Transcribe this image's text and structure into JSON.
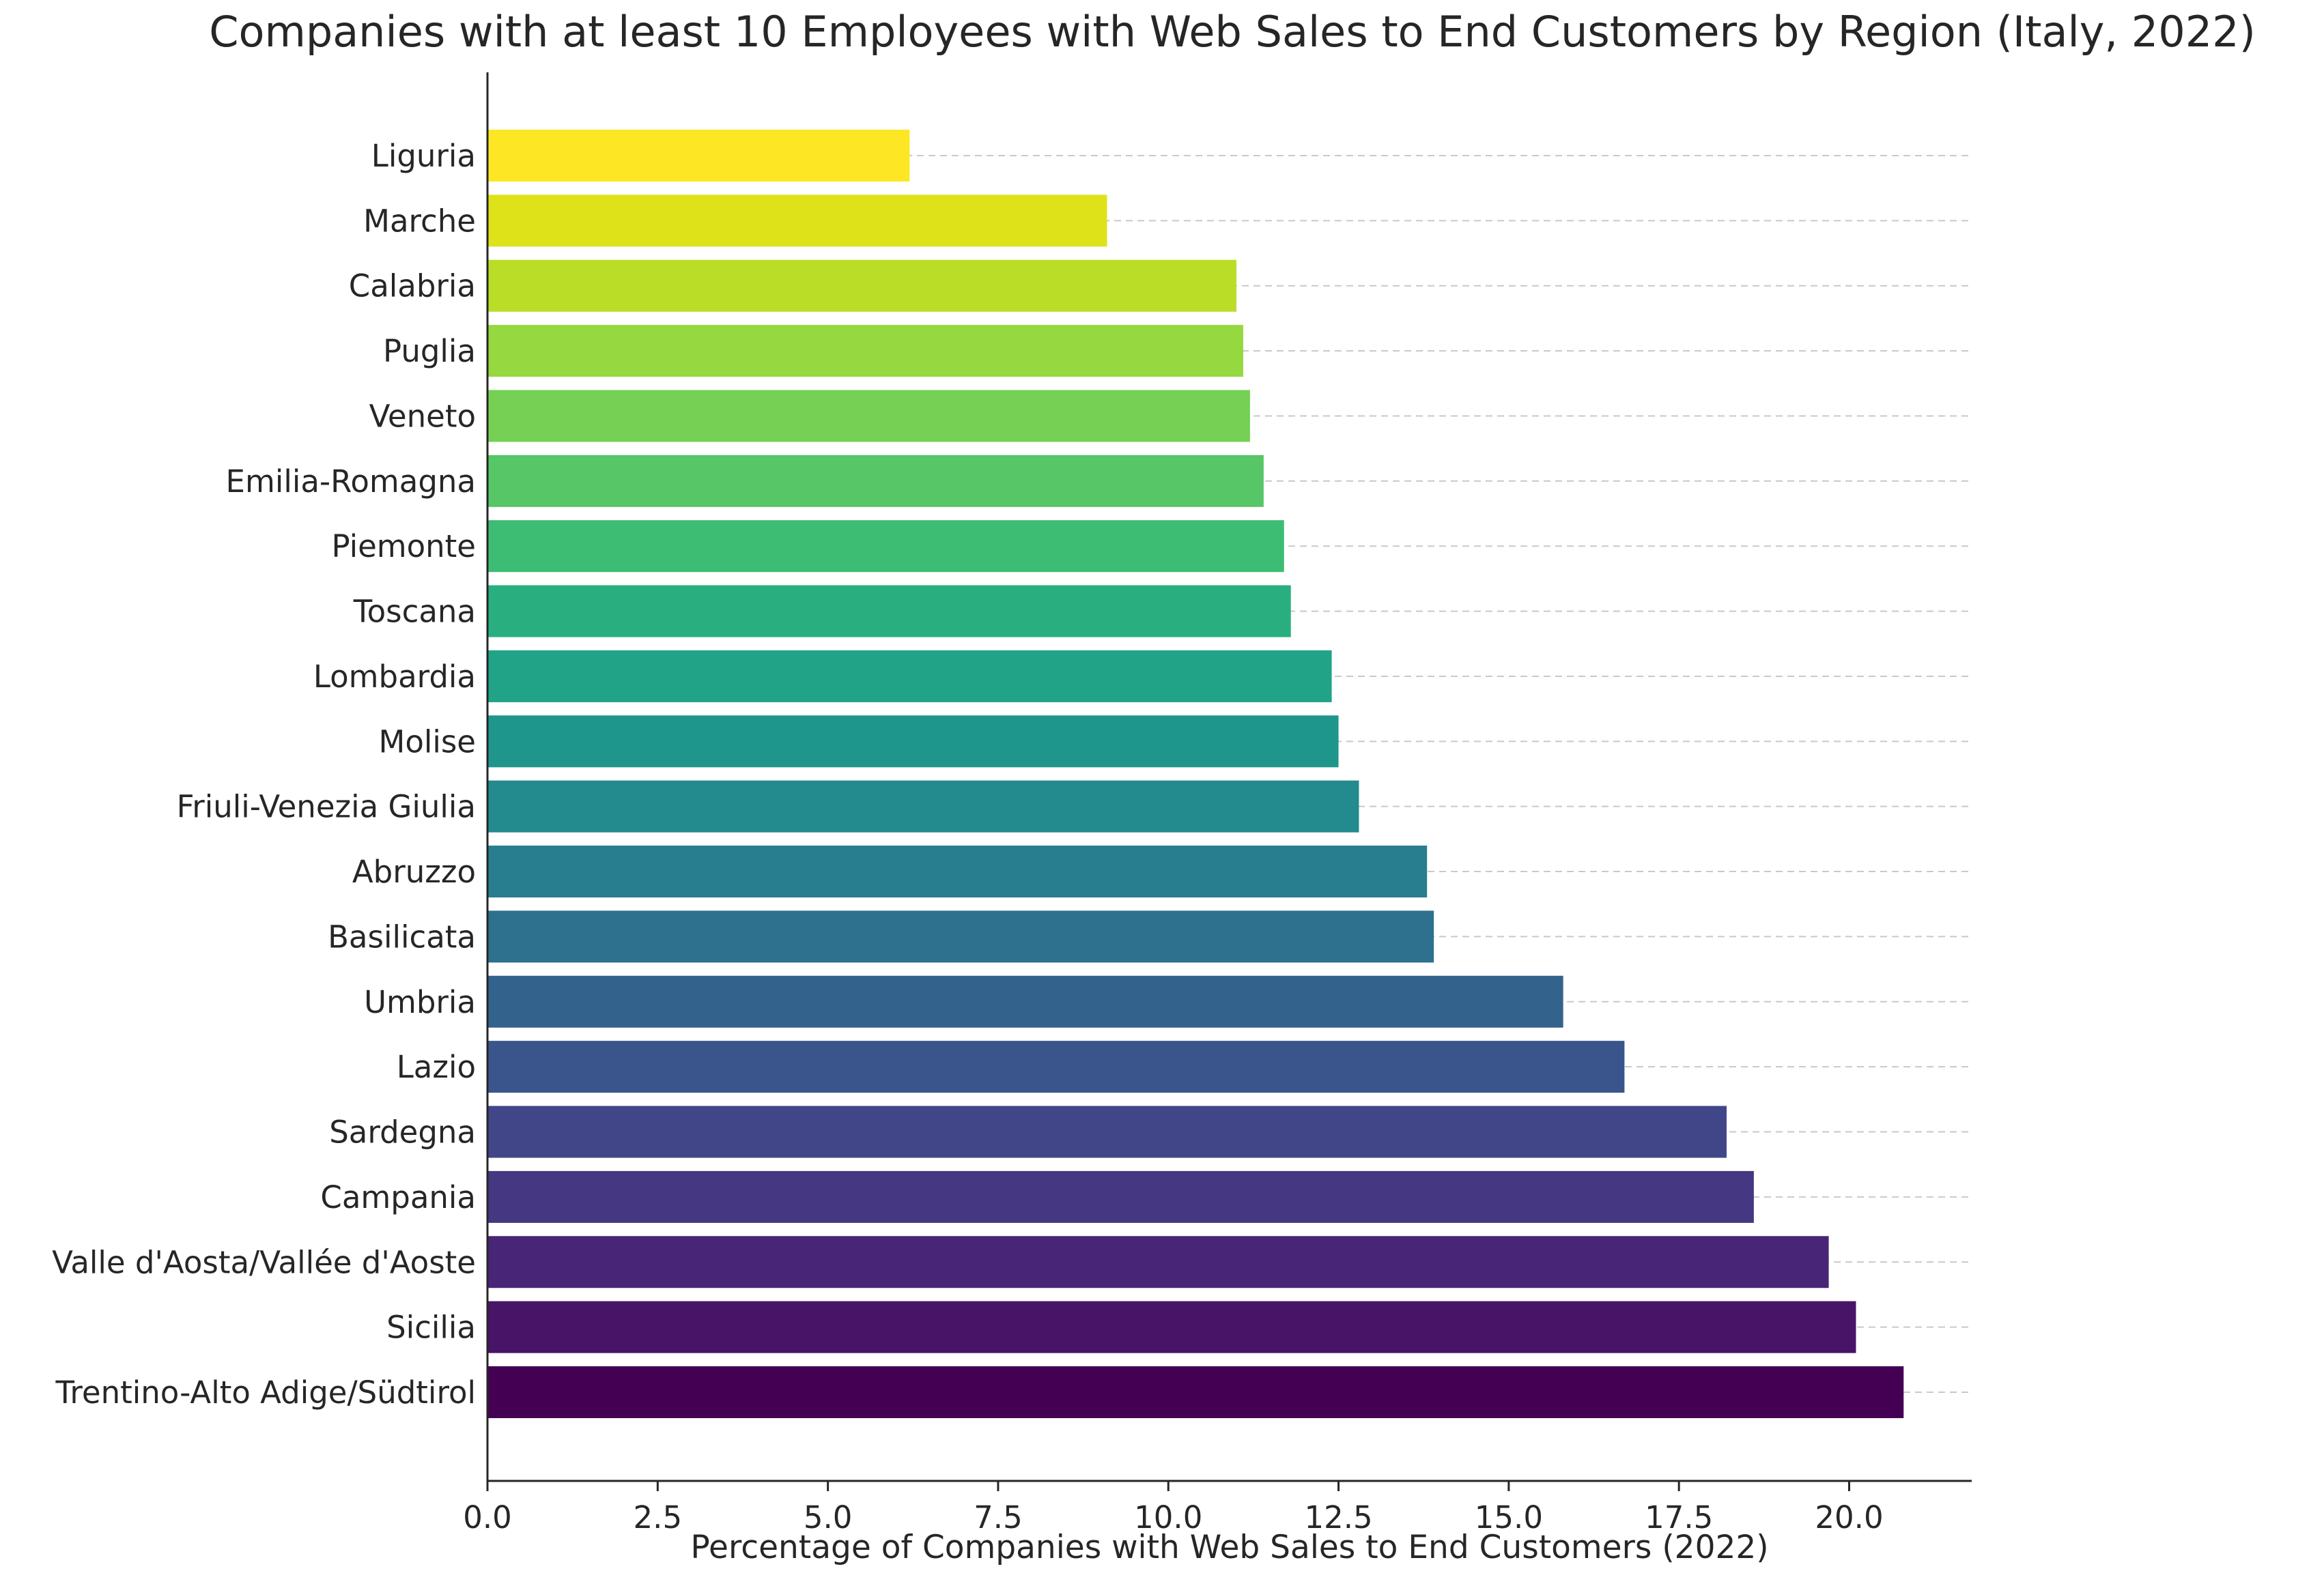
{
  "chart_data": {
    "type": "bar",
    "orientation": "horizontal",
    "title": "Companies with at least 10 Employees with Web Sales to End Customers by Region (Italy, 2022)",
    "xlabel": "Percentage of Companies with Web Sales to End Customers (2022)",
    "ylabel": "",
    "xlim": [
      0,
      21.8
    ],
    "xticks": [
      "0.0",
      "2.5",
      "5.0",
      "7.5",
      "10.0",
      "12.5",
      "15.0",
      "17.5",
      "20.0"
    ],
    "grid": "horizontal dashed",
    "categories": [
      "Liguria",
      "Marche",
      "Calabria",
      "Puglia",
      "Veneto",
      "Emilia-Romagna",
      "Piemonte",
      "Toscana",
      "Lombardia",
      "Molise",
      "Friuli-Venezia Giulia",
      "Abruzzo",
      "Basilicata",
      "Umbria",
      "Lazio",
      "Sardegna",
      "Campania",
      "Valle d'Aosta/Vallée d'Aoste",
      "Sicilia",
      "Trentino-Alto Adige/Südtirol"
    ],
    "values": [
      6.2,
      9.1,
      11.0,
      11.1,
      11.2,
      11.4,
      11.7,
      11.8,
      12.4,
      12.5,
      12.8,
      13.8,
      13.9,
      15.8,
      16.7,
      18.2,
      18.6,
      19.7,
      20.1,
      20.8
    ],
    "colors": [
      "#fde725",
      "#dde318",
      "#bade28",
      "#95d840",
      "#75d054",
      "#56c667",
      "#3dbc74",
      "#29af7f",
      "#20a386",
      "#1f968b",
      "#238a8d",
      "#287d8e",
      "#2d718e",
      "#33638d",
      "#39558c",
      "#404688",
      "#453781",
      "#482576",
      "#481467",
      "#440154"
    ]
  }
}
